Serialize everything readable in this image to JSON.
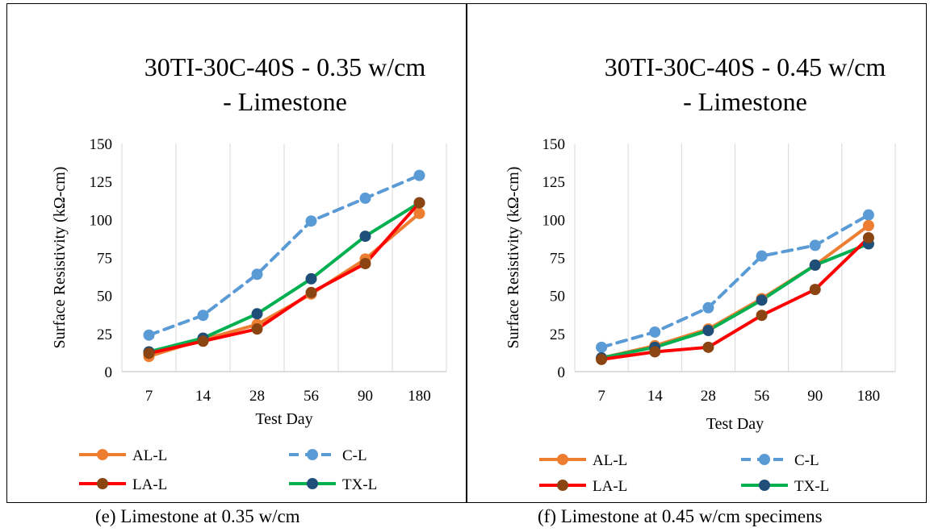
{
  "panels": [
    {
      "caption": "(e) Limestone at 0.35 w/cm",
      "chart_data": {
        "type": "line",
        "title_lines": [
          "30TI-30C-40S - 0.35 w/cm",
          "- Limestone"
        ],
        "xlabel": "Test Day",
        "ylabel": "Surface Resistivity (kΩ-cm)",
        "categories": [
          "7",
          "14",
          "28",
          "56",
          "90",
          "180"
        ],
        "ylim": [
          0,
          150
        ],
        "yticks": [
          0,
          25,
          50,
          75,
          100,
          125,
          150
        ],
        "grid": "vertical",
        "legend_position": "bottom",
        "series": [
          {
            "name": "AL-L",
            "color": "#ED7D31",
            "dashed": false,
            "values": [
              10,
              21,
              31,
              51,
              74,
              104
            ]
          },
          {
            "name": "C-L",
            "color": "#5B9BD5",
            "dashed": true,
            "values": [
              24,
              37,
              64,
              99,
              114,
              129
            ]
          },
          {
            "name": "LA-L",
            "color": "#FF0000",
            "marker": "#8B4513",
            "dashed": false,
            "values": [
              12,
              20,
              28,
              52,
              71,
              111
            ]
          },
          {
            "name": "TX-L",
            "color": "#00B050",
            "marker": "#1F4E79",
            "dashed": false,
            "values": [
              13,
              22,
              38,
              61,
              89,
              111
            ]
          }
        ]
      }
    },
    {
      "caption": "(f) Limestone at 0.45 w/cm specimens",
      "chart_data": {
        "type": "line",
        "title_lines": [
          "30TI-30C-40S - 0.45 w/cm",
          "- Limestone"
        ],
        "xlabel": "Test Day",
        "ylabel": "Surface Resistivity (kΩ-cm)",
        "categories": [
          "7",
          "14",
          "28",
          "56",
          "90",
          "180"
        ],
        "ylim": [
          0,
          150
        ],
        "yticks": [
          0,
          25,
          50,
          75,
          100,
          125,
          150
        ],
        "grid": "vertical",
        "legend_position": "bottom",
        "series": [
          {
            "name": "AL-L",
            "color": "#ED7D31",
            "dashed": false,
            "values": [
              9,
              17,
              28,
              48,
              70,
              96
            ]
          },
          {
            "name": "C-L",
            "color": "#5B9BD5",
            "dashed": true,
            "values": [
              16,
              26,
              42,
              76,
              83,
              103
            ]
          },
          {
            "name": "LA-L",
            "color": "#FF0000",
            "marker": "#8B4513",
            "dashed": false,
            "values": [
              8,
              13,
              16,
              37,
              54,
              88
            ]
          },
          {
            "name": "TX-L",
            "color": "#00B050",
            "marker": "#1F4E79",
            "dashed": false,
            "values": [
              9,
              16,
              27,
              47,
              70,
              84
            ]
          }
        ]
      }
    }
  ]
}
